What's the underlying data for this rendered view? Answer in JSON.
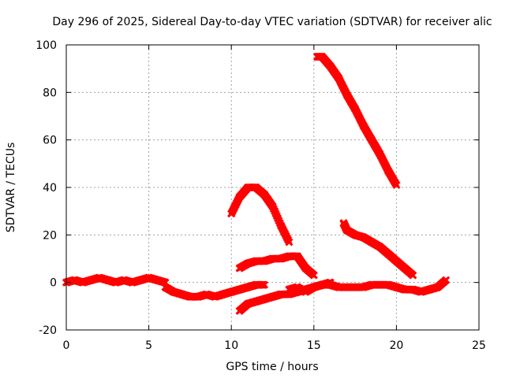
{
  "chart_data": {
    "type": "scatter",
    "title": "Day 296 of 2025, Sidereal Day-to-day VTEC variation (SDTVAR) for receiver alic",
    "xlabel": "GPS time / hours",
    "ylabel": "SDTVAR / TECUs",
    "xlim": [
      0,
      25
    ],
    "ylim": [
      -20,
      100
    ],
    "xticks": [
      "0",
      "5",
      "10",
      "15",
      "20",
      "25"
    ],
    "yticks": [
      "-20",
      "0",
      "20",
      "40",
      "60",
      "80",
      "100"
    ],
    "grid": true,
    "series_color": "#ff0000",
    "series": [
      {
        "x": [
          0,
          0.5,
          1,
          1.5,
          2,
          2.5,
          3,
          3.5,
          4,
          4.5,
          5,
          5.5,
          6
        ],
        "y": [
          0,
          1,
          0,
          1,
          2,
          1,
          0,
          1,
          0,
          1,
          2,
          1,
          0
        ]
      },
      {
        "x": [
          6,
          6.5,
          7,
          7.5,
          8,
          8.5,
          9,
          9.5,
          10,
          10.5,
          11,
          11.5,
          12
        ],
        "y": [
          -2,
          -4,
          -5,
          -6,
          -6,
          -5,
          -6,
          -5,
          -4,
          -3,
          -2,
          -1,
          -1
        ]
      },
      {
        "x": [
          10,
          10.5,
          11,
          11.5,
          12,
          12.5,
          13,
          13.5
        ],
        "y": [
          29,
          36,
          40,
          40,
          37,
          32,
          24,
          17
        ]
      },
      {
        "x": [
          10.5,
          11,
          11.5,
          12,
          12.5,
          13,
          13.5,
          14,
          14.5,
          15
        ],
        "y": [
          6,
          8,
          9,
          9,
          10,
          10,
          11,
          11,
          6,
          3
        ]
      },
      {
        "x": [
          10.5,
          11,
          11.5,
          12,
          12.5,
          13,
          13.5,
          14,
          14.5,
          15,
          15.5,
          16,
          16.5,
          17,
          17.5,
          18,
          18.5,
          19,
          19.5,
          20,
          20.5,
          21,
          21.5,
          22,
          22.5,
          23
        ],
        "y": [
          -12,
          -9,
          -8,
          -7,
          -6,
          -5,
          -5,
          -4,
          -3,
          -2,
          -1,
          -1,
          -2,
          -2,
          -2,
          -2,
          -1,
          -1,
          -1,
          -2,
          -3,
          -3,
          -4,
          -3,
          -2,
          1
        ]
      },
      {
        "x": [
          15.2,
          15.5,
          16,
          16.5,
          17,
          17.5,
          18,
          18.5,
          19,
          19.5,
          20
        ],
        "y": [
          95,
          95,
          91,
          86,
          79,
          73,
          66,
          60,
          54,
          47,
          41
        ]
      },
      {
        "x": [
          16.8,
          17,
          17.5,
          18,
          18.5,
          19,
          19.5,
          20,
          20.5,
          21
        ],
        "y": [
          25,
          22,
          20,
          19,
          17,
          15,
          12,
          9,
          6,
          3
        ]
      },
      {
        "x": [
          13.5,
          14,
          14.5,
          15,
          15.5,
          16
        ],
        "y": [
          -3,
          -2,
          -4,
          -2,
          -1,
          0
        ]
      }
    ]
  }
}
